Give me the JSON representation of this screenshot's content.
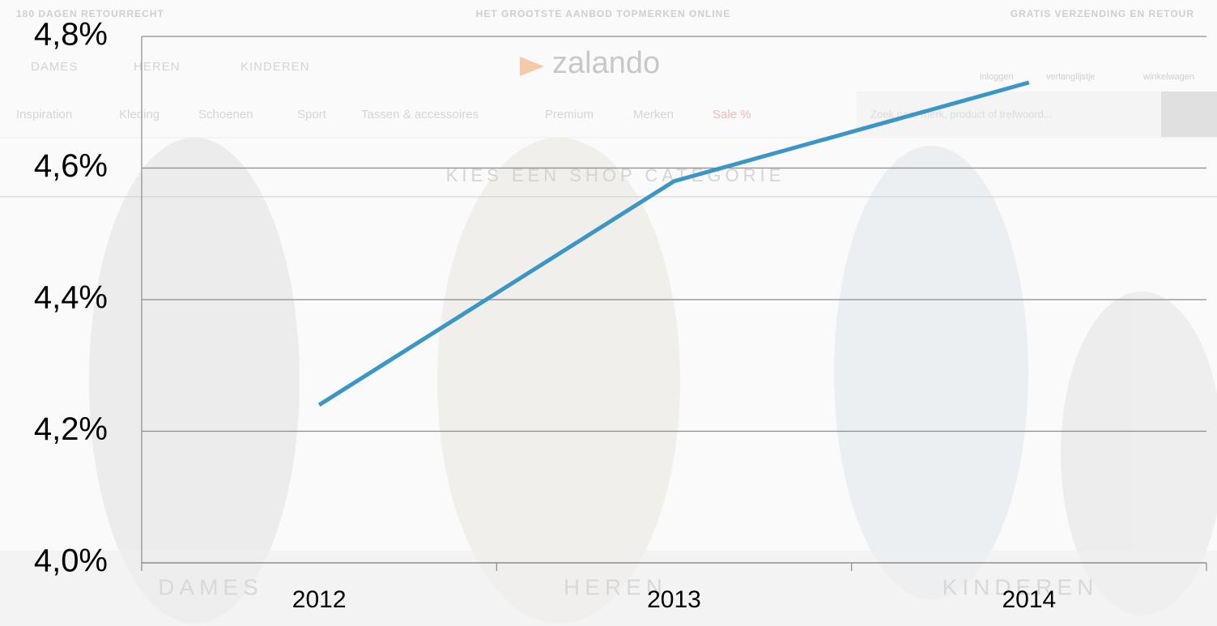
{
  "chart_data": {
    "type": "line",
    "categories": [
      "2012",
      "2013",
      "2014"
    ],
    "series": [
      {
        "color": "#3a96c6",
        "values": [
          4.24,
          4.58,
          4.73
        ]
      }
    ],
    "ylim": [
      4.0,
      4.8
    ],
    "yticks": [
      {
        "value": 4.0,
        "label": "4,0%"
      },
      {
        "value": 4.2,
        "label": "4,2%"
      },
      {
        "value": 4.4,
        "label": "4,4%"
      },
      {
        "value": 4.6,
        "label": "4,6%"
      },
      {
        "value": 4.8,
        "label": "4,8%"
      }
    ],
    "grid": true
  },
  "background": {
    "top_bar": [
      "180 DAGEN RETOURRECHT",
      "HET GROOTSTE AANBOD TOPMERKEN ONLINE",
      "GRATIS VERZENDING EN RETOUR"
    ],
    "gender_nav": [
      "DAMES",
      "HEREN",
      "KINDEREN"
    ],
    "logo": "zalando",
    "account": [
      "inloggen",
      "verlanglijstje",
      "winkelwagen"
    ],
    "menu": [
      "Inspiration",
      "Kleding",
      "Schoenen",
      "Sport",
      "Tassen & accessoires",
      "Premium",
      "Merken",
      "Sale %"
    ],
    "search": "Zoek naar merk, product of trefwoord...",
    "heading": "KIES EEN SHOP CATEGORIE",
    "shops": [
      "DAMES",
      "HEREN",
      "KINDEREN"
    ]
  }
}
